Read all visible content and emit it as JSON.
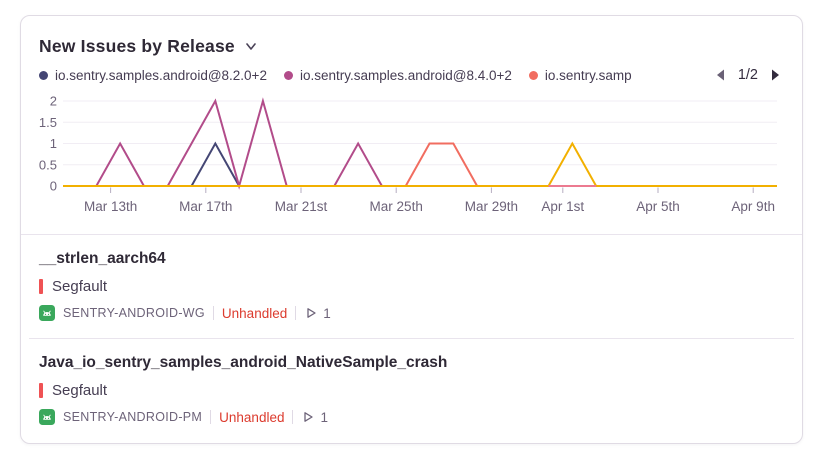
{
  "widget": {
    "title": "New Issues by Release",
    "legend": [
      {
        "label": "io.sentry.samples.android@8.2.0+2",
        "color": "#444674"
      },
      {
        "label": "io.sentry.samples.android@8.4.0+2",
        "color": "#b24c8a"
      },
      {
        "label": "io.sentry.samp",
        "color": "#f16d60"
      }
    ],
    "pagination": {
      "label": "1/2"
    }
  },
  "chart_data": {
    "type": "line",
    "title": "New Issues by Release",
    "x": [
      "Mar 11",
      "Mar 12",
      "Mar 13",
      "Mar 14",
      "Mar 15",
      "Mar 16",
      "Mar 17",
      "Mar 18",
      "Mar 19",
      "Mar 20",
      "Mar 21",
      "Mar 22",
      "Mar 23",
      "Mar 24",
      "Mar 25",
      "Mar 26",
      "Mar 27",
      "Mar 28",
      "Mar 29",
      "Mar 30",
      "Mar 31",
      "Apr 1",
      "Apr 2",
      "Apr 3",
      "Apr 4",
      "Apr 5",
      "Apr 6",
      "Apr 7",
      "Apr 8",
      "Apr 9",
      "Apr 10"
    ],
    "series": [
      {
        "name": "io.sentry.samples.android@8.2.0+2",
        "color": "#444674",
        "values": [
          0,
          0,
          0,
          0,
          0,
          0,
          1,
          0,
          0,
          0,
          0,
          0,
          0,
          0,
          0,
          0,
          0,
          0,
          0,
          0,
          0,
          0,
          0,
          0,
          0,
          0,
          0,
          0,
          0,
          0,
          0
        ]
      },
      {
        "name": "io.sentry.samples.android@8.4.0+2",
        "color": "#b24c8a",
        "values": [
          0,
          0,
          1,
          0,
          0,
          1,
          2,
          0,
          2,
          0,
          0,
          0,
          1,
          0,
          0,
          0,
          0,
          0,
          0,
          0,
          0,
          0,
          0,
          0,
          0,
          0,
          0,
          0,
          0,
          0,
          0
        ]
      },
      {
        "name": "io.sentry.samp",
        "color": "#f16d60",
        "values": [
          0,
          0,
          0,
          0,
          0,
          0,
          0,
          0,
          0,
          0,
          0,
          0,
          0,
          0,
          0,
          1,
          1,
          0,
          0,
          0,
          0,
          0,
          0,
          0,
          0,
          0,
          0,
          0,
          0,
          0,
          0
        ]
      },
      {
        "name": null,
        "color": "#f2b000",
        "values": [
          0,
          0,
          0,
          0,
          0,
          0,
          0,
          0,
          0,
          0,
          0,
          0,
          0,
          0,
          0,
          0,
          0,
          0,
          0,
          0,
          0,
          1,
          0,
          0,
          0,
          0,
          0,
          0,
          0,
          0,
          0
        ]
      },
      {
        "name": null,
        "color": "#ec7a90",
        "values": [
          null,
          null,
          null,
          null,
          null,
          null,
          null,
          null,
          null,
          null,
          null,
          null,
          null,
          null,
          null,
          null,
          null,
          null,
          null,
          null,
          0,
          0,
          0,
          null,
          null,
          null,
          null,
          null,
          null,
          null,
          null
        ]
      }
    ],
    "ylim": [
      0,
      2
    ],
    "yticks": [
      0,
      0.5,
      1,
      1.5,
      2
    ],
    "xtick_labels": [
      "Mar 13th",
      "Mar 17th",
      "Mar 21st",
      "Mar 25th",
      "Mar 29th",
      "Apr 1st",
      "Apr 5th",
      "Apr 9th"
    ],
    "xtick_index": [
      2,
      6,
      10,
      14,
      18,
      21,
      25,
      29
    ],
    "legend_position": "top",
    "grid": true
  },
  "issues": [
    {
      "title": "__strlen_aarch64",
      "error_type": "Segfault",
      "project": "SENTRY-ANDROID-WG",
      "handled_status": "Unhandled",
      "event_count": "1"
    },
    {
      "title": "Java_io_sentry_samples_android_NativeSample_crash",
      "error_type": "Segfault",
      "project": "SENTRY-ANDROID-PM",
      "handled_status": "Unhandled",
      "event_count": "1"
    }
  ],
  "colors": {
    "series_navy": "#444674",
    "series_magenta": "#b24c8a",
    "series_salmon": "#f16d60",
    "series_yellow": "#f2b000",
    "series_pink": "#ec7a90",
    "level_bar_red": "#ef5254",
    "unhandled_red": "#dc3b2e",
    "android_green": "#3aa85c",
    "text_dark": "#2f2936",
    "text_muted": "#6d6379"
  }
}
